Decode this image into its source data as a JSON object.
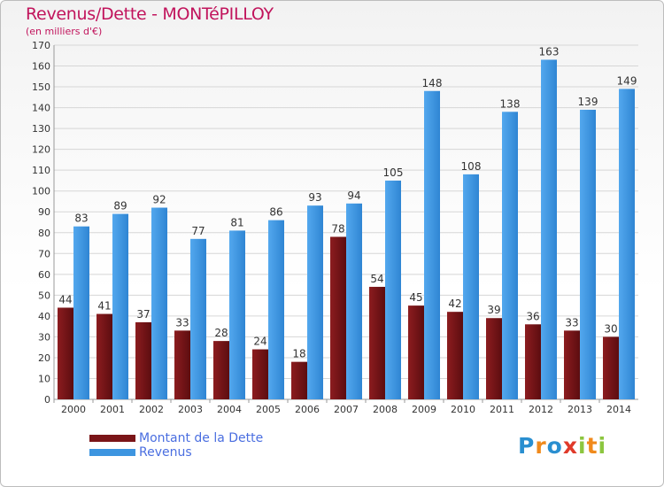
{
  "chart_data": {
    "type": "bar",
    "title": "Revenus/Dette - MONTéPILLOY",
    "subtitle": "(en milliers d'€)",
    "categories": [
      "2000",
      "2001",
      "2002",
      "2003",
      "2004",
      "2005",
      "2006",
      "2007",
      "2008",
      "2009",
      "2010",
      "2011",
      "2012",
      "2013",
      "2014"
    ],
    "series": [
      {
        "name": "Montant de la Dette",
        "color": "#7a1518",
        "values": [
          44,
          41,
          37,
          33,
          28,
          24,
          18,
          78,
          54,
          45,
          42,
          39,
          36,
          33,
          30
        ]
      },
      {
        "name": "Revenus",
        "color": "#3d95e0",
        "values": [
          83,
          89,
          92,
          77,
          81,
          86,
          93,
          94,
          105,
          148,
          108,
          138,
          163,
          139,
          149
        ]
      }
    ],
    "ylim": [
      0,
      170
    ],
    "ytick_step": 10,
    "grid": true,
    "legend_position": "bottom-left"
  },
  "brand": {
    "letters": [
      "P",
      "r",
      "o",
      "x",
      "i",
      "t",
      "i"
    ],
    "colors": [
      "#2a8fd0",
      "#f08a1c",
      "#2a8fd0",
      "#e03a2a",
      "#8cc63f",
      "#f08a1c",
      "#8cc63f"
    ]
  }
}
